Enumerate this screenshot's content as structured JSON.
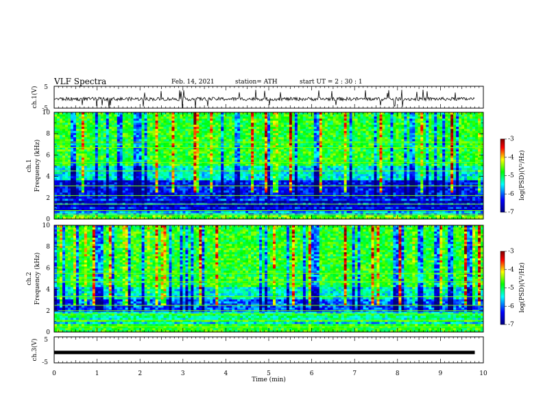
{
  "header": {
    "title": "VLF Spectra",
    "date": "Feb. 14, 2021",
    "station": "station= ATH",
    "start": "start UT =  2 : 30 : 1"
  },
  "chart_data": [
    {
      "type": "line",
      "panel": "ch1-waveform",
      "ylabel": "ch.1(V)",
      "ylim": [
        -5,
        5
      ],
      "yticks": [
        "5",
        "-5"
      ],
      "xlim": [
        0,
        10
      ],
      "x_end": 9.8,
      "baseline": -0.8,
      "color": "#000000"
    },
    {
      "type": "heatmap",
      "panel": "ch1-spectrogram",
      "ylabel_line1": "ch.1",
      "ylabel_line2": "Frequency (kHz)",
      "ylim": [
        0,
        10
      ],
      "yticks": [
        "0",
        "2",
        "4",
        "6",
        "8",
        "10"
      ],
      "xlim": [
        0,
        10
      ],
      "colorbar": {
        "label": "log(PSD)(V²/Hz)",
        "range": [
          -7,
          -3
        ],
        "ticks": [
          "-3",
          "-4",
          "-5",
          "-6",
          "-7"
        ]
      }
    },
    {
      "type": "heatmap",
      "panel": "ch2-spectrogram",
      "ylabel_line1": "ch.2",
      "ylabel_line2": "Frequency (kHz)",
      "ylim": [
        0,
        10
      ],
      "yticks": [
        "0",
        "2",
        "4",
        "6",
        "8",
        "10"
      ],
      "xlim": [
        0,
        10
      ],
      "colorbar": {
        "label": "log(PSD)(V²/Hz)",
        "range": [
          -7,
          -3
        ],
        "ticks": [
          "-3",
          "-4",
          "-5",
          "-6",
          "-7"
        ]
      }
    },
    {
      "type": "line",
      "panel": "ch3-waveform",
      "ylabel": "ch.3(V)",
      "ylim": [
        -5,
        5
      ],
      "yticks": [
        "5",
        "-5"
      ],
      "xlim": [
        0,
        10
      ],
      "x_end": 9.8,
      "baseline": -1.0,
      "color": "#000000"
    }
  ],
  "xaxis": {
    "label": "Time (min)",
    "ticks": [
      "0",
      "1",
      "2",
      "3",
      "4",
      "5",
      "6",
      "7",
      "8",
      "9",
      "10"
    ]
  },
  "colormap": [
    "#00007f",
    "#0000ff",
    "#00ffff",
    "#00ff00",
    "#ffff00",
    "#ff0000",
    "#7f0000"
  ]
}
